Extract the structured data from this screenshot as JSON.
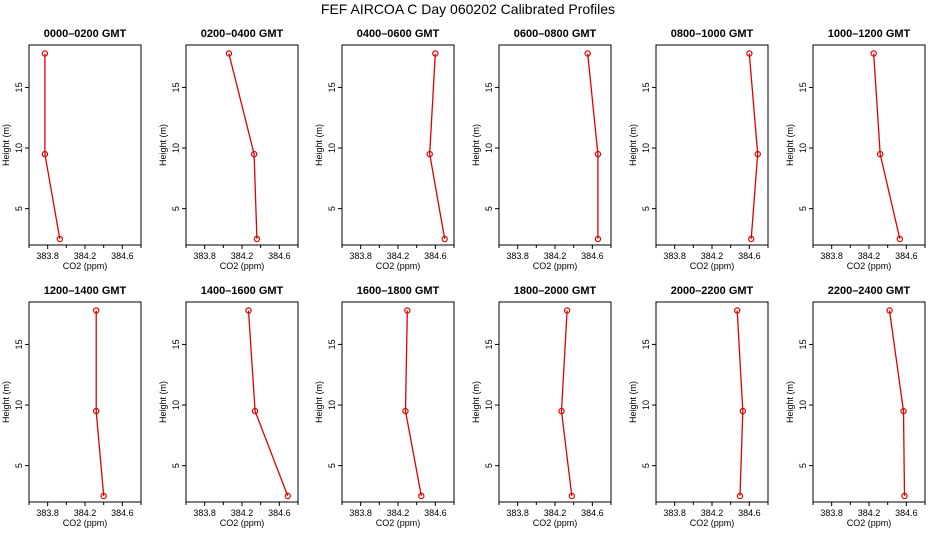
{
  "figure_title": "FEF AIRCOA C  Day 060202  Calibrated Profiles",
  "colors": {
    "line": "#e00000",
    "marker": "#e00000",
    "axis": "#000000",
    "background": "#ffffff"
  },
  "chart_data": [
    {
      "type": "line",
      "title": "0000–0200 GMT",
      "xlabel": "CO2 (ppm)",
      "ylabel": "Height (m)",
      "xlim": [
        383.6,
        384.8
      ],
      "ylim": [
        2,
        18.5
      ],
      "xticks": [
        "383.8",
        "384.2",
        "384.6"
      ],
      "yticks": [
        "5",
        "10",
        "15"
      ],
      "series": [
        {
          "x": [
            383.77,
            383.77,
            383.93
          ],
          "y": [
            17.8,
            9.5,
            2.5
          ]
        }
      ]
    },
    {
      "type": "line",
      "title": "0200–0400 GMT",
      "xlabel": "CO2 (ppm)",
      "ylabel": "Height (m)",
      "xlim": [
        383.6,
        384.8
      ],
      "ylim": [
        2,
        18.5
      ],
      "xticks": [
        "383.8",
        "384.2",
        "384.6"
      ],
      "yticks": [
        "5",
        "10",
        "15"
      ],
      "series": [
        {
          "x": [
            384.06,
            384.33,
            384.36
          ],
          "y": [
            17.8,
            9.5,
            2.5
          ]
        }
      ]
    },
    {
      "type": "line",
      "title": "0400–0600 GMT",
      "xlabel": "CO2 (ppm)",
      "ylabel": "Height (m)",
      "xlim": [
        383.6,
        384.8
      ],
      "ylim": [
        2,
        18.5
      ],
      "xticks": [
        "383.8",
        "384.2",
        "384.6"
      ],
      "yticks": [
        "5",
        "10",
        "15"
      ],
      "series": [
        {
          "x": [
            384.6,
            384.54,
            384.7
          ],
          "y": [
            17.8,
            9.5,
            2.5
          ]
        }
      ]
    },
    {
      "type": "line",
      "title": "0600–0800 GMT",
      "xlabel": "CO2 (ppm)",
      "ylabel": "Height (m)",
      "xlim": [
        383.6,
        384.8
      ],
      "ylim": [
        2,
        18.5
      ],
      "xticks": [
        "383.8",
        "384.2",
        "384.6"
      ],
      "yticks": [
        "5",
        "10",
        "15"
      ],
      "series": [
        {
          "x": [
            384.55,
            384.66,
            384.66
          ],
          "y": [
            17.8,
            9.5,
            2.5
          ]
        }
      ]
    },
    {
      "type": "line",
      "title": "0800–1000 GMT",
      "xlabel": "CO2 (ppm)",
      "ylabel": "Height (m)",
      "xlim": [
        383.6,
        384.8
      ],
      "ylim": [
        2,
        18.5
      ],
      "xticks": [
        "383.8",
        "384.2",
        "384.6"
      ],
      "yticks": [
        "5",
        "10",
        "15"
      ],
      "series": [
        {
          "x": [
            384.6,
            384.69,
            384.62
          ],
          "y": [
            17.8,
            9.5,
            2.5
          ]
        }
      ]
    },
    {
      "type": "line",
      "title": "1000–1200 GMT",
      "xlabel": "CO2 (ppm)",
      "ylabel": "Height (m)",
      "xlim": [
        383.6,
        384.8
      ],
      "ylim": [
        2,
        18.5
      ],
      "xticks": [
        "383.8",
        "384.2",
        "384.6"
      ],
      "yticks": [
        "5",
        "10",
        "15"
      ],
      "series": [
        {
          "x": [
            384.25,
            384.32,
            384.53
          ],
          "y": [
            17.8,
            9.5,
            2.5
          ]
        }
      ]
    },
    {
      "type": "line",
      "title": "1200–1400 GMT",
      "xlabel": "CO2 (ppm)",
      "ylabel": "Height (m)",
      "xlim": [
        383.6,
        384.8
      ],
      "ylim": [
        2,
        18.5
      ],
      "xticks": [
        "383.8",
        "384.2",
        "384.6"
      ],
      "yticks": [
        "5",
        "10",
        "15"
      ],
      "series": [
        {
          "x": [
            384.32,
            384.32,
            384.4
          ],
          "y": [
            17.8,
            9.5,
            2.5
          ]
        }
      ]
    },
    {
      "type": "line",
      "title": "1400–1600 GMT",
      "xlabel": "CO2 (ppm)",
      "ylabel": "Height (m)",
      "xlim": [
        383.6,
        384.8
      ],
      "ylim": [
        2,
        18.5
      ],
      "xticks": [
        "383.8",
        "384.2",
        "384.6"
      ],
      "yticks": [
        "5",
        "10",
        "15"
      ],
      "series": [
        {
          "x": [
            384.27,
            384.34,
            384.69
          ],
          "y": [
            17.8,
            9.5,
            2.5
          ]
        }
      ]
    },
    {
      "type": "line",
      "title": "1600–1800 GMT",
      "xlabel": "CO2 (ppm)",
      "ylabel": "Height (m)",
      "xlim": [
        383.6,
        384.8
      ],
      "ylim": [
        2,
        18.5
      ],
      "xticks": [
        "383.8",
        "384.2",
        "384.6"
      ],
      "yticks": [
        "5",
        "10",
        "15"
      ],
      "series": [
        {
          "x": [
            384.3,
            384.28,
            384.45
          ],
          "y": [
            17.8,
            9.5,
            2.5
          ]
        }
      ]
    },
    {
      "type": "line",
      "title": "1800–2000 GMT",
      "xlabel": "CO2 (ppm)",
      "ylabel": "Height (m)",
      "xlim": [
        383.6,
        384.8
      ],
      "ylim": [
        2,
        18.5
      ],
      "xticks": [
        "383.8",
        "384.2",
        "384.6"
      ],
      "yticks": [
        "5",
        "10",
        "15"
      ],
      "series": [
        {
          "x": [
            384.33,
            384.27,
            384.38
          ],
          "y": [
            17.8,
            9.5,
            2.5
          ]
        }
      ]
    },
    {
      "type": "line",
      "title": "2000–2200 GMT",
      "xlabel": "CO2 (ppm)",
      "ylabel": "Height (m)",
      "xlim": [
        383.6,
        384.8
      ],
      "ylim": [
        2,
        18.5
      ],
      "xticks": [
        "383.8",
        "384.2",
        "384.6"
      ],
      "yticks": [
        "5",
        "10",
        "15"
      ],
      "series": [
        {
          "x": [
            384.47,
            384.53,
            384.5
          ],
          "y": [
            17.8,
            9.5,
            2.5
          ]
        }
      ]
    },
    {
      "type": "line",
      "title": "2200–2400 GMT",
      "xlabel": "CO2 (ppm)",
      "ylabel": "Height (m)",
      "xlim": [
        383.6,
        384.8
      ],
      "ylim": [
        2,
        18.5
      ],
      "xticks": [
        "383.8",
        "384.2",
        "384.6"
      ],
      "yticks": [
        "5",
        "10",
        "15"
      ],
      "series": [
        {
          "x": [
            384.42,
            384.57,
            384.58
          ],
          "y": [
            17.8,
            9.5,
            2.5
          ]
        }
      ]
    }
  ]
}
